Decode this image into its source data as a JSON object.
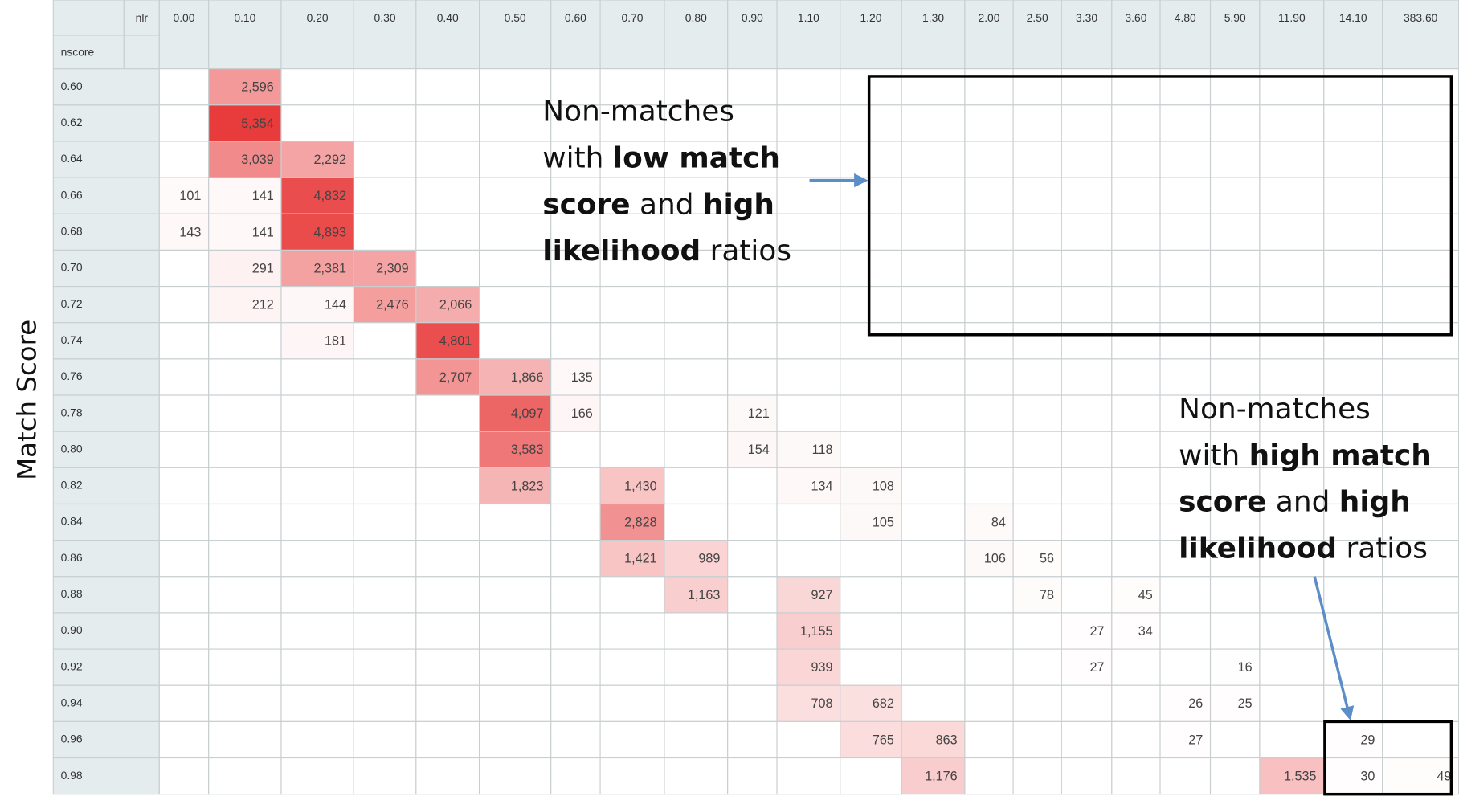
{
  "table": {
    "corner_col": "nlr",
    "corner_row": "nscore",
    "columns": [
      "0.00",
      "0.10",
      "0.20",
      "0.30",
      "0.40",
      "0.50",
      "0.60",
      "0.70",
      "0.80",
      "0.90",
      "1.10",
      "1.20",
      "1.30",
      "2.00",
      "2.50",
      "3.30",
      "3.60",
      "4.80",
      "5.90",
      "11.90",
      "14.10",
      "383.60"
    ],
    "rows": [
      {
        "label": "0.60",
        "cells": [
          null,
          "2,596",
          null,
          null,
          null,
          null,
          null,
          null,
          null,
          null,
          null,
          null,
          null,
          null,
          null,
          null,
          null,
          null,
          null,
          null,
          null,
          null
        ]
      },
      {
        "label": "0.62",
        "cells": [
          null,
          "5,354",
          null,
          null,
          null,
          null,
          null,
          null,
          null,
          null,
          null,
          null,
          null,
          null,
          null,
          null,
          null,
          null,
          null,
          null,
          null,
          null
        ]
      },
      {
        "label": "0.64",
        "cells": [
          null,
          "3,039",
          "2,292",
          null,
          null,
          null,
          null,
          null,
          null,
          null,
          null,
          null,
          null,
          null,
          null,
          null,
          null,
          null,
          null,
          null,
          null,
          null
        ]
      },
      {
        "label": "0.66",
        "cells": [
          "101",
          "141",
          "4,832",
          null,
          null,
          null,
          null,
          null,
          null,
          null,
          null,
          null,
          null,
          null,
          null,
          null,
          null,
          null,
          null,
          null,
          null,
          null
        ]
      },
      {
        "label": "0.68",
        "cells": [
          "143",
          "141",
          "4,893",
          null,
          null,
          null,
          null,
          null,
          null,
          null,
          null,
          null,
          null,
          null,
          null,
          null,
          null,
          null,
          null,
          null,
          null,
          null
        ]
      },
      {
        "label": "0.70",
        "cells": [
          null,
          "291",
          "2,381",
          "2,309",
          null,
          null,
          null,
          null,
          null,
          null,
          null,
          null,
          null,
          null,
          null,
          null,
          null,
          null,
          null,
          null,
          null,
          null
        ]
      },
      {
        "label": "0.72",
        "cells": [
          null,
          "212",
          "144",
          "2,476",
          "2,066",
          null,
          null,
          null,
          null,
          null,
          null,
          null,
          null,
          null,
          null,
          null,
          null,
          null,
          null,
          null,
          null,
          null
        ]
      },
      {
        "label": "0.74",
        "cells": [
          null,
          null,
          "181",
          null,
          "4,801",
          null,
          null,
          null,
          null,
          null,
          null,
          null,
          null,
          null,
          null,
          null,
          null,
          null,
          null,
          null,
          null,
          null
        ]
      },
      {
        "label": "0.76",
        "cells": [
          null,
          null,
          null,
          null,
          "2,707",
          "1,866",
          "135",
          null,
          null,
          null,
          null,
          null,
          null,
          null,
          null,
          null,
          null,
          null,
          null,
          null,
          null,
          null
        ]
      },
      {
        "label": "0.78",
        "cells": [
          null,
          null,
          null,
          null,
          null,
          "4,097",
          "166",
          null,
          null,
          "121",
          null,
          null,
          null,
          null,
          null,
          null,
          null,
          null,
          null,
          null,
          null,
          null
        ]
      },
      {
        "label": "0.80",
        "cells": [
          null,
          null,
          null,
          null,
          null,
          "3,583",
          null,
          null,
          null,
          "154",
          "118",
          null,
          null,
          null,
          null,
          null,
          null,
          null,
          null,
          null,
          null,
          null
        ]
      },
      {
        "label": "0.82",
        "cells": [
          null,
          null,
          null,
          null,
          null,
          "1,823",
          null,
          "1,430",
          null,
          null,
          "134",
          "108",
          null,
          null,
          null,
          null,
          null,
          null,
          null,
          null,
          null,
          null
        ]
      },
      {
        "label": "0.84",
        "cells": [
          null,
          null,
          null,
          null,
          null,
          null,
          null,
          "2,828",
          null,
          null,
          null,
          "105",
          null,
          "84",
          null,
          null,
          null,
          null,
          null,
          null,
          null,
          null
        ]
      },
      {
        "label": "0.86",
        "cells": [
          null,
          null,
          null,
          null,
          null,
          null,
          null,
          "1,421",
          "989",
          null,
          null,
          null,
          null,
          "106",
          "56",
          null,
          null,
          null,
          null,
          null,
          null,
          null
        ]
      },
      {
        "label": "0.88",
        "cells": [
          null,
          null,
          null,
          null,
          null,
          null,
          null,
          null,
          "1,163",
          null,
          "927",
          null,
          null,
          null,
          "78",
          null,
          "45",
          null,
          null,
          null,
          null,
          null
        ]
      },
      {
        "label": "0.90",
        "cells": [
          null,
          null,
          null,
          null,
          null,
          null,
          null,
          null,
          null,
          null,
          "1,155",
          null,
          null,
          null,
          null,
          "27",
          "34",
          null,
          null,
          null,
          null,
          null
        ]
      },
      {
        "label": "0.92",
        "cells": [
          null,
          null,
          null,
          null,
          null,
          null,
          null,
          null,
          null,
          null,
          "939",
          null,
          null,
          null,
          null,
          "27",
          null,
          null,
          "16",
          null,
          null,
          null
        ]
      },
      {
        "label": "0.94",
        "cells": [
          null,
          null,
          null,
          null,
          null,
          null,
          null,
          null,
          null,
          null,
          "708",
          "682",
          null,
          null,
          null,
          null,
          null,
          "26",
          "25",
          null,
          null,
          null
        ]
      },
      {
        "label": "0.96",
        "cells": [
          null,
          null,
          null,
          null,
          null,
          null,
          null,
          null,
          null,
          null,
          null,
          "765",
          "863",
          null,
          null,
          null,
          null,
          "27",
          null,
          null,
          "29",
          null
        ]
      },
      {
        "label": "0.98",
        "cells": [
          null,
          null,
          null,
          null,
          null,
          null,
          null,
          null,
          null,
          null,
          null,
          null,
          "1,176",
          null,
          null,
          null,
          null,
          null,
          null,
          "1,535",
          "30",
          "49"
        ]
      }
    ]
  },
  "axis_label": "Match Score",
  "annotations": [
    {
      "lines": [
        [
          {
            "text": "Non-matches",
            "bold": false
          }
        ],
        [
          {
            "text": "with ",
            "bold": false
          },
          {
            "text": "low match",
            "bold": true
          }
        ],
        [
          {
            "text": "score",
            "bold": true
          },
          {
            "text": " and ",
            "bold": false
          },
          {
            "text": "high",
            "bold": true
          }
        ],
        [
          {
            "text": "likelihood",
            "bold": true
          },
          {
            "text": " ratios",
            "bold": false
          }
        ]
      ]
    },
    {
      "lines": [
        [
          {
            "text": "Non-matches",
            "bold": false
          }
        ],
        [
          {
            "text": "with ",
            "bold": false
          },
          {
            "text": "high match",
            "bold": true
          }
        ],
        [
          {
            "text": "score",
            "bold": true
          },
          {
            "text": " and ",
            "bold": false
          },
          {
            "text": "high",
            "bold": true
          }
        ],
        [
          {
            "text": "likelihood",
            "bold": true
          },
          {
            "text": " ratios",
            "bold": false
          }
        ]
      ]
    }
  ]
}
